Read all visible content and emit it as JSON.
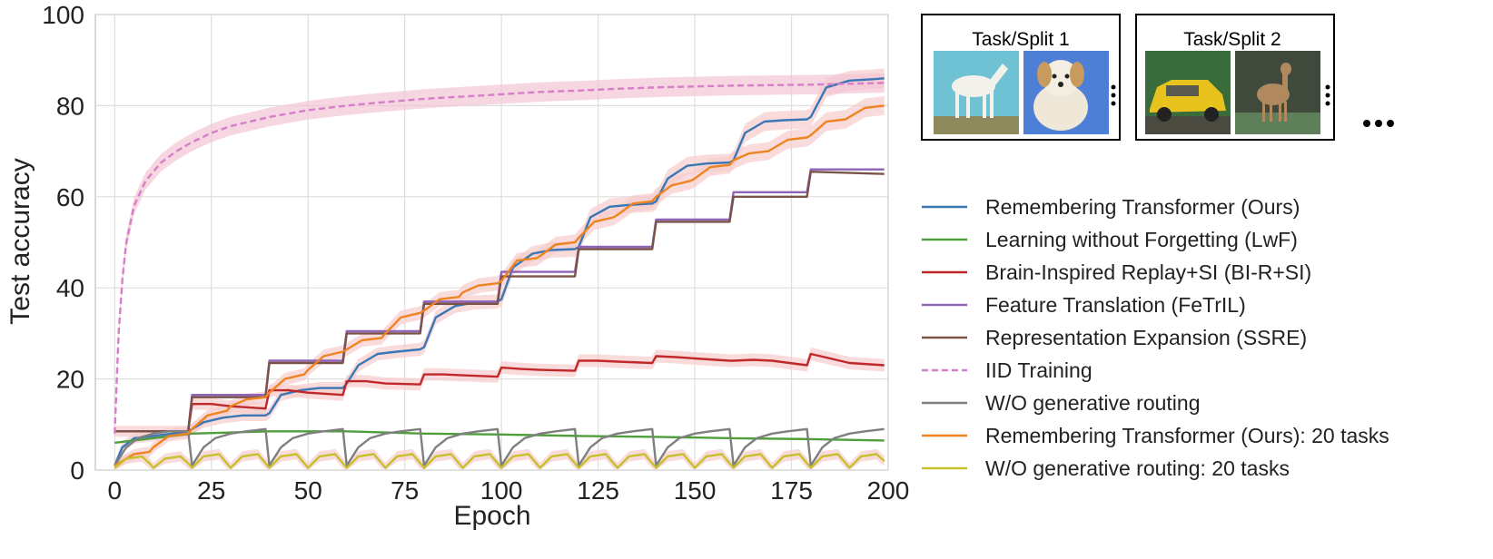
{
  "chart_data": {
    "type": "line",
    "xlabel": "Epoch",
    "ylabel": "Test accuracy",
    "xlim": [
      -5,
      200
    ],
    "ylim": [
      0,
      100
    ],
    "xticks": [
      "0",
      "25",
      "50",
      "75",
      "100",
      "125",
      "150",
      "175",
      "200"
    ],
    "yticks": [
      "0",
      "20",
      "40",
      "60",
      "80",
      "100"
    ],
    "grid": true,
    "legend_position": "right",
    "series": [
      {
        "name": "Remembering Transformer (Ours)",
        "color": "#3a77b5",
        "style": "solid",
        "band": true,
        "x": [
          0,
          2,
          5,
          10,
          15,
          19,
          20,
          23,
          28,
          33,
          39,
          40,
          43,
          48,
          53,
          59,
          60,
          63,
          68,
          73,
          79,
          80,
          83,
          88,
          93,
          99,
          100,
          103,
          108,
          113,
          119,
          120,
          123,
          128,
          133,
          139,
          140,
          143,
          148,
          153,
          159,
          160,
          163,
          168,
          173,
          179,
          180,
          184,
          190,
          196,
          199
        ],
        "y": [
          1,
          5,
          7,
          7.5,
          8,
          8.5,
          9,
          10.5,
          11.5,
          12,
          12,
          12.5,
          16.5,
          17.5,
          18,
          18,
          19,
          23,
          25.5,
          26,
          26.5,
          27,
          33.5,
          36,
          36.8,
          37,
          37.5,
          44.5,
          47.5,
          48.3,
          48.5,
          49,
          55.5,
          57.8,
          58.2,
          58.5,
          59,
          64,
          66.8,
          67.3,
          67.5,
          68,
          74,
          76.5,
          76.8,
          77,
          77.5,
          84,
          85.5,
          85.8,
          86
        ]
      },
      {
        "name": "Learning without Forgetting (LwF)",
        "color": "#4e9e3a",
        "style": "solid",
        "band": false,
        "x": [
          0,
          20,
          40,
          60,
          80,
          100,
          120,
          140,
          160,
          180,
          199
        ],
        "y": [
          6,
          8,
          8.5,
          8.5,
          8,
          7.8,
          7.5,
          7.3,
          7,
          6.8,
          6.5
        ]
      },
      {
        "name": "Brain-Inspired Replay+SI (BI-R+SI)",
        "color": "#c0282a",
        "style": "solid",
        "band": true,
        "x": [
          0,
          19,
          20,
          25,
          30,
          39,
          40,
          45,
          50,
          59,
          60,
          65,
          70,
          79,
          80,
          85,
          90,
          99,
          100,
          105,
          110,
          119,
          120,
          125,
          130,
          139,
          140,
          145,
          150,
          159,
          160,
          165,
          170,
          179,
          180,
          185,
          190,
          199
        ],
        "y": [
          8.5,
          8.5,
          14.5,
          14.5,
          14,
          13.5,
          17.5,
          17.5,
          17,
          16.5,
          19.5,
          19.5,
          19,
          18.8,
          21,
          21,
          20.8,
          20.5,
          22.5,
          22.2,
          22,
          21.8,
          24,
          24,
          23.8,
          23.5,
          25,
          24.8,
          24.5,
          24,
          24,
          24.2,
          24,
          23,
          25.5,
          24.5,
          23.5,
          23
        ]
      },
      {
        "name": "Feature Translation (FeTrIL)",
        "color": "#8e63b8",
        "style": "solid",
        "band": false,
        "x": [
          0,
          19,
          20,
          39,
          40,
          59,
          60,
          79,
          80,
          99,
          100,
          119,
          120,
          139,
          140,
          159,
          160,
          179,
          180,
          199
        ],
        "y": [
          8.5,
          8.5,
          16.5,
          16.5,
          24,
          24,
          30.5,
          30.5,
          37,
          37,
          43.5,
          43.5,
          49,
          49,
          55,
          55,
          61,
          61,
          66,
          66
        ]
      },
      {
        "name": "Representation Expansion (SSRE)",
        "color": "#7a5248",
        "style": "solid",
        "band": false,
        "x": [
          0,
          19,
          20,
          39,
          40,
          59,
          60,
          79,
          80,
          99,
          100,
          119,
          120,
          139,
          140,
          159,
          160,
          179,
          180,
          199
        ],
        "y": [
          8.5,
          8.5,
          16,
          16,
          23.5,
          23.5,
          30,
          30,
          36.5,
          36.5,
          42.5,
          42.5,
          48.5,
          48.5,
          54.5,
          54.5,
          60,
          60,
          65.5,
          65
        ]
      },
      {
        "name": "IID Training",
        "color": "#d67ec8",
        "style": "dashed",
        "band": true,
        "x": [
          0,
          1,
          2,
          3,
          5,
          8,
          12,
          16,
          20,
          25,
          30,
          40,
          50,
          60,
          70,
          80,
          90,
          100,
          110,
          120,
          130,
          140,
          150,
          160,
          170,
          180,
          190,
          199
        ],
        "y": [
          8,
          30,
          42,
          50,
          58,
          63.5,
          67.5,
          70,
          72,
          74,
          75.5,
          77.5,
          79,
          80,
          80.8,
          81.5,
          82,
          82.5,
          83,
          83.3,
          83.7,
          84,
          84.2,
          84.4,
          84.5,
          84.6,
          84.8,
          85
        ]
      },
      {
        "name": "W/O generative routing",
        "color": "#7f7f7f",
        "style": "solid",
        "band": false,
        "x": [
          0,
          3,
          6,
          10,
          14,
          19,
          20,
          23,
          26,
          30,
          34,
          39,
          40,
          43,
          46,
          50,
          54,
          59,
          60,
          63,
          66,
          70,
          74,
          79,
          80,
          83,
          86,
          90,
          94,
          99,
          100,
          103,
          106,
          110,
          114,
          119,
          120,
          123,
          126,
          130,
          134,
          139,
          140,
          143,
          146,
          150,
          154,
          159,
          160,
          163,
          166,
          170,
          174,
          179,
          180,
          183,
          186,
          190,
          194,
          199
        ],
        "y": [
          1,
          5,
          7,
          8,
          8.5,
          8.5,
          1,
          5,
          7,
          8,
          8.5,
          9,
          1,
          5,
          7,
          8,
          8.5,
          9,
          1,
          5,
          7,
          8,
          8.5,
          9,
          1,
          5,
          7,
          8,
          8.5,
          9,
          1,
          5,
          7,
          8,
          8.5,
          9,
          1,
          5,
          7,
          8,
          8.5,
          9,
          1,
          5,
          7,
          8,
          8.5,
          9,
          1,
          5,
          7,
          8,
          8.5,
          9,
          1,
          5,
          7,
          8,
          8.5,
          9
        ]
      },
      {
        "name": "Remembering Transformer (Ours): 20 tasks",
        "color": "#ee8421",
        "style": "solid",
        "band": true,
        "x": [
          0,
          5,
          9,
          10,
          14,
          19,
          20,
          24,
          29,
          30,
          34,
          39,
          40,
          44,
          49,
          50,
          54,
          59,
          60,
          64,
          69,
          70,
          74,
          79,
          80,
          84,
          89,
          90,
          94,
          99,
          100,
          104,
          109,
          110,
          114,
          119,
          120,
          124,
          129,
          130,
          134,
          139,
          140,
          144,
          149,
          150,
          154,
          159,
          160,
          164,
          169,
          170,
          174,
          179,
          180,
          184,
          189,
          190,
          194,
          199
        ],
        "y": [
          1,
          3.5,
          4,
          5,
          7.5,
          8,
          9,
          12,
          13,
          14,
          15.5,
          16,
          17,
          20,
          21,
          22,
          25,
          26,
          26.5,
          28.5,
          29,
          30,
          33.5,
          34.5,
          35,
          37.5,
          38,
          39,
          40.5,
          41,
          41.5,
          46,
          46.5,
          47,
          49.5,
          50,
          51,
          54.5,
          55.5,
          56,
          58.5,
          59,
          60,
          62.5,
          63.5,
          64,
          66.5,
          67,
          68,
          69.5,
          70,
          70.5,
          72.5,
          73,
          73.5,
          76.5,
          77,
          77.5,
          79.5,
          80
        ]
      },
      {
        "name": "W/O generative routing: 20 tasks",
        "color": "#c6c02a",
        "style": "solid",
        "band": true,
        "x": [
          0,
          3,
          7,
          9,
          10,
          13,
          17,
          19,
          20,
          23,
          27,
          29,
          30,
          33,
          37,
          39,
          40,
          43,
          47,
          49,
          50,
          53,
          57,
          59,
          60,
          63,
          67,
          69,
          70,
          73,
          77,
          79,
          80,
          83,
          87,
          89,
          90,
          93,
          97,
          99,
          100,
          103,
          107,
          109,
          110,
          113,
          117,
          119,
          120,
          123,
          127,
          129,
          130,
          133,
          137,
          139,
          140,
          143,
          147,
          149,
          150,
          153,
          157,
          159,
          160,
          163,
          167,
          169,
          170,
          173,
          177,
          179,
          180,
          183,
          187,
          189,
          190,
          193,
          197,
          199
        ],
        "y": [
          0.5,
          2.5,
          3,
          1.5,
          0.5,
          2.5,
          3,
          1.5,
          0.5,
          3,
          3.5,
          1.5,
          0.5,
          3,
          3.5,
          1.5,
          0.5,
          3,
          3.5,
          1.5,
          0.5,
          3,
          3.5,
          1.5,
          0.5,
          3,
          3.5,
          1.5,
          0.5,
          3,
          3.5,
          1.5,
          0.5,
          3,
          3.5,
          1.5,
          0.5,
          3,
          3.5,
          1.5,
          0.5,
          3,
          3.5,
          1.5,
          0.5,
          3,
          3.5,
          1.5,
          0.5,
          3,
          3.5,
          1.5,
          0.5,
          3,
          3.5,
          1.5,
          0.5,
          3,
          3.5,
          1.5,
          0.5,
          3,
          3.5,
          1.5,
          0.5,
          3,
          3.5,
          1.5,
          0.5,
          3,
          3.5,
          1.5,
          0.5,
          3,
          3.5,
          1.5,
          0.5,
          3,
          3.5,
          2
        ]
      }
    ]
  },
  "panels": [
    {
      "title": "Task/Split 1",
      "images": [
        "horse-photo",
        "dog-photo"
      ]
    },
    {
      "title": "Task/Split 2",
      "images": [
        "car-photo",
        "deer-photo"
      ]
    }
  ],
  "panels_more": "..."
}
